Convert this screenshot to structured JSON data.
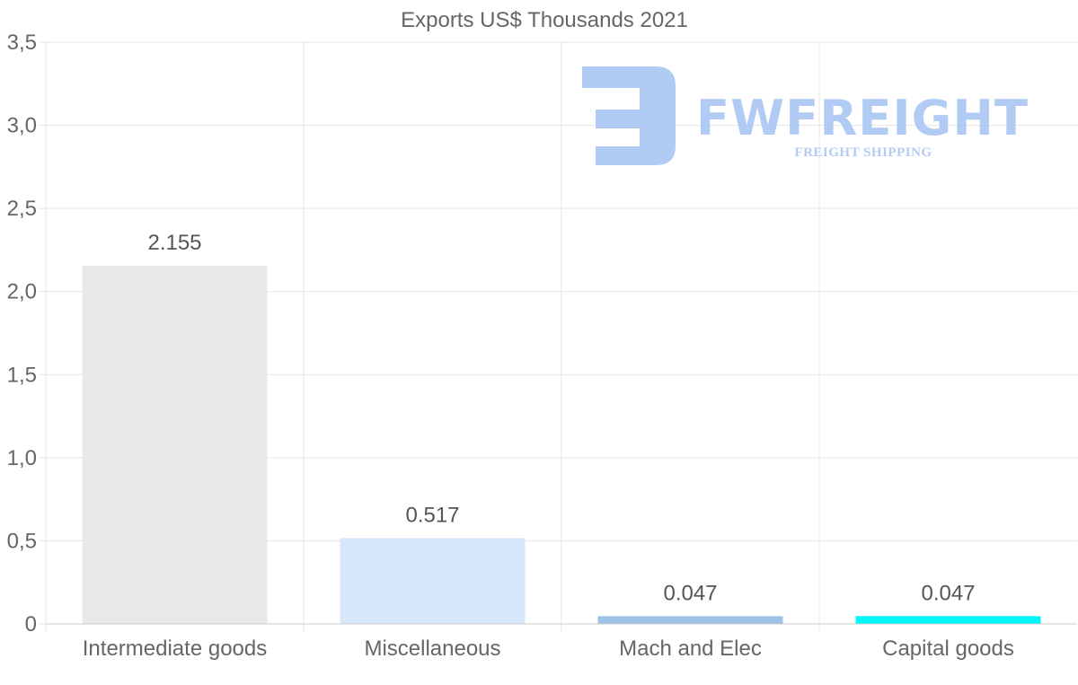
{
  "chart_data": {
    "type": "bar",
    "title": "Exports US$ Thousands 2021",
    "categories": [
      "Intermediate goods",
      "Miscellaneous",
      "Mach and Elec",
      "Capital goods"
    ],
    "values": [
      2.155,
      0.517,
      0.047,
      0.047
    ],
    "value_labels": [
      "2.155",
      "0.517",
      "0.047",
      "0.047"
    ],
    "bar_colors": [
      "#e8e8e8",
      "#d6e7fa",
      "#9fc1e6",
      "#00f8f8"
    ],
    "ylim": [
      0,
      3.5
    ],
    "yticks": [
      0,
      0.5,
      1.0,
      1.5,
      2.0,
      2.5,
      3.0,
      3.5
    ],
    "ytick_labels": [
      "0",
      "0,5",
      "1,0",
      "1,5",
      "2,0",
      "2,5",
      "3,0",
      "3,5"
    ],
    "xlabel": "",
    "ylabel": "",
    "grid": true,
    "legend": "none"
  },
  "watermark": {
    "brand": "FWFREIGHT",
    "tagline": "FREIGHT SHIPPING",
    "color": "#a9c6f3"
  },
  "colors": {
    "grid": "#e5e5e5",
    "axis": "#cccccc",
    "text": "#666666"
  }
}
